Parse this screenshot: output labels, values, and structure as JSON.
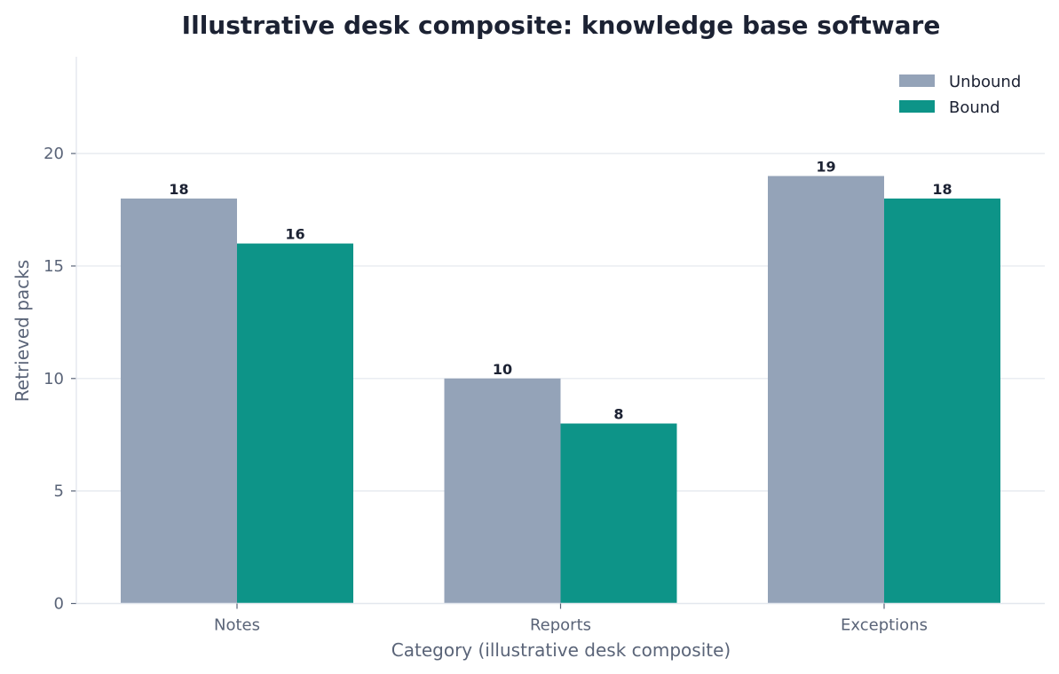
{
  "chart_data": {
    "type": "bar",
    "title": "Illustrative desk composite: knowledge base software",
    "xlabel": "Category (illustrative desk composite)",
    "ylabel": "Retrieved packs",
    "categories": [
      "Notes",
      "Reports",
      "Exceptions"
    ],
    "series": [
      {
        "name": "Unbound",
        "values": [
          18,
          10,
          19
        ],
        "color": "#94a3b8"
      },
      {
        "name": "Bound",
        "values": [
          16,
          8,
          18
        ],
        "color": "#0d9488"
      }
    ],
    "ylim": [
      0,
      24.3
    ],
    "yticks": [
      0,
      5,
      10,
      15,
      20
    ],
    "grid": true,
    "legend": "top-right"
  }
}
